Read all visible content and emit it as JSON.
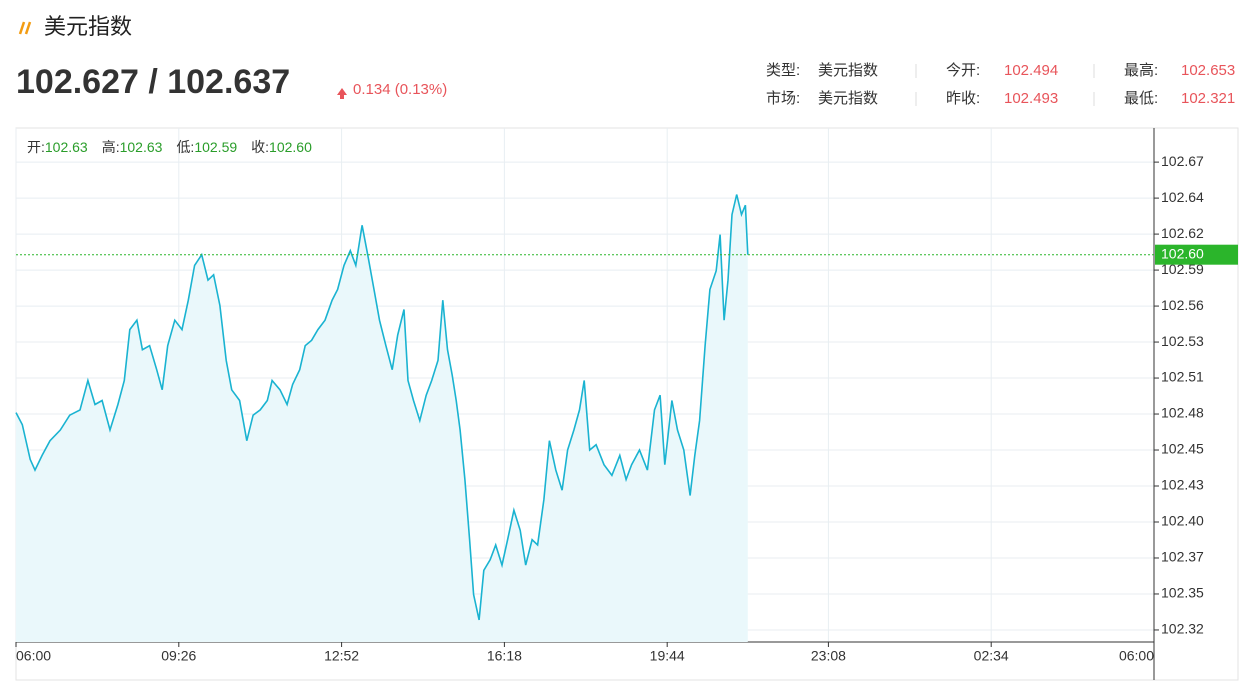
{
  "header": {
    "title": "美元指数",
    "price": "102.627 / 102.637",
    "change": "0.134 (0.13%)"
  },
  "info": [
    {
      "label": "类型:",
      "value": "美元指数"
    },
    {
      "label": "今开:",
      "value": "102.494"
    },
    {
      "label": "最高:",
      "value": "102.653"
    },
    {
      "label": "市场:",
      "value": "美元指数"
    },
    {
      "label": "昨收:",
      "value": "102.493"
    },
    {
      "label": "最低:",
      "value": "102.321"
    }
  ],
  "chart_data": {
    "type": "area",
    "legend": [
      {
        "label": "开:",
        "value": "102.63"
      },
      {
        "label": "高:",
        "value": "102.63"
      },
      {
        "label": "低:",
        "value": "102.59"
      },
      {
        "label": "收:",
        "value": "102.60"
      }
    ],
    "color": "#1ab3d1",
    "fill": "#eaf8fb",
    "grid": true,
    "xlim": [
      0,
      1440
    ],
    "xticks": [
      {
        "value": 0,
        "label": "06:00"
      },
      {
        "value": 206,
        "label": "09:26"
      },
      {
        "value": 412,
        "label": "12:52"
      },
      {
        "value": 618,
        "label": "16:18"
      },
      {
        "value": 824,
        "label": "19:44"
      },
      {
        "value": 1028,
        "label": "23:08"
      },
      {
        "value": 1234,
        "label": "02:34"
      },
      {
        "value": 1440,
        "label": "06:00"
      }
    ],
    "ylim": [
      102.3105,
      102.6947
    ],
    "yticks": [
      {
        "value": 102.3195,
        "label": "102.32"
      },
      {
        "value": 102.3464,
        "label": "102.35"
      },
      {
        "value": 102.3733,
        "label": "102.37"
      },
      {
        "value": 102.4002,
        "label": "102.40"
      },
      {
        "value": 102.4271,
        "label": "102.43"
      },
      {
        "value": 102.454,
        "label": "102.45"
      },
      {
        "value": 102.4809,
        "label": "102.48"
      },
      {
        "value": 102.5078,
        "label": "102.51"
      },
      {
        "value": 102.5347,
        "label": "102.53"
      },
      {
        "value": 102.5616,
        "label": "102.56"
      },
      {
        "value": 102.5885,
        "label": "102.59"
      },
      {
        "value": 102.6154,
        "label": "102.62"
      },
      {
        "value": 102.6423,
        "label": "102.64"
      },
      {
        "value": 102.6692,
        "label": "102.67"
      }
    ],
    "last": {
      "value": 102.6,
      "label": "102.60"
    },
    "x": [
      0,
      8,
      18,
      24,
      33,
      43,
      56,
      68,
      81,
      91,
      100,
      109,
      119,
      129,
      137,
      144,
      153,
      160,
      169,
      178,
      185,
      192,
      201,
      210,
      218,
      226,
      235,
      243,
      250,
      258,
      266,
      273,
      283,
      292,
      300,
      309,
      318,
      324,
      334,
      343,
      350,
      359,
      366,
      374,
      382,
      391,
      400,
      407,
      415,
      423,
      430,
      438,
      445,
      453,
      460,
      468,
      476,
      483,
      491,
      496,
      503,
      511,
      519,
      526,
      534,
      540,
      546,
      552,
      557,
      562,
      568,
      574,
      579,
      586,
      592,
      600,
      607,
      615,
      622,
      630,
      638,
      645,
      653,
      660,
      668,
      675,
      683,
      691,
      698,
      706,
      713,
      719,
      726,
      734,
      744,
      754,
      764,
      772,
      779,
      789,
      799,
      808,
      815,
      821,
      830,
      837,
      845,
      853,
      859,
      865,
      872,
      878,
      886,
      891,
      896,
      901,
      906,
      912,
      918,
      923,
      926
    ],
    "values": [
      102.482,
      102.473,
      102.447,
      102.439,
      102.45,
      102.461,
      102.469,
      102.48,
      102.484,
      102.506,
      102.488,
      102.491,
      102.469,
      102.488,
      102.506,
      102.544,
      102.551,
      102.529,
      102.532,
      102.514,
      102.499,
      102.532,
      102.551,
      102.544,
      102.566,
      102.592,
      102.6,
      102.581,
      102.585,
      102.562,
      102.521,
      102.499,
      102.491,
      102.461,
      102.48,
      102.484,
      102.491,
      102.506,
      102.499,
      102.488,
      102.503,
      102.514,
      102.532,
      102.536,
      102.544,
      102.551,
      102.566,
      102.574,
      102.592,
      102.603,
      102.592,
      102.622,
      102.6,
      102.574,
      102.551,
      102.532,
      102.514,
      102.54,
      102.559,
      102.506,
      102.491,
      102.476,
      102.495,
      102.506,
      102.521,
      102.566,
      102.529,
      102.51,
      102.491,
      102.469,
      102.432,
      102.387,
      102.346,
      102.327,
      102.364,
      102.372,
      102.383,
      102.368,
      102.387,
      102.409,
      102.394,
      102.368,
      102.387,
      102.383,
      102.417,
      102.461,
      102.439,
      102.424,
      102.454,
      102.469,
      102.484,
      102.506,
      102.454,
      102.458,
      102.443,
      102.435,
      102.45,
      102.432,
      102.443,
      102.454,
      102.439,
      102.484,
      102.495,
      102.443,
      102.491,
      102.469,
      102.454,
      102.42,
      102.45,
      102.476,
      102.532,
      102.574,
      102.588,
      102.615,
      102.551,
      102.581,
      102.63,
      102.645,
      102.63,
      102.637,
      102.6
    ]
  }
}
